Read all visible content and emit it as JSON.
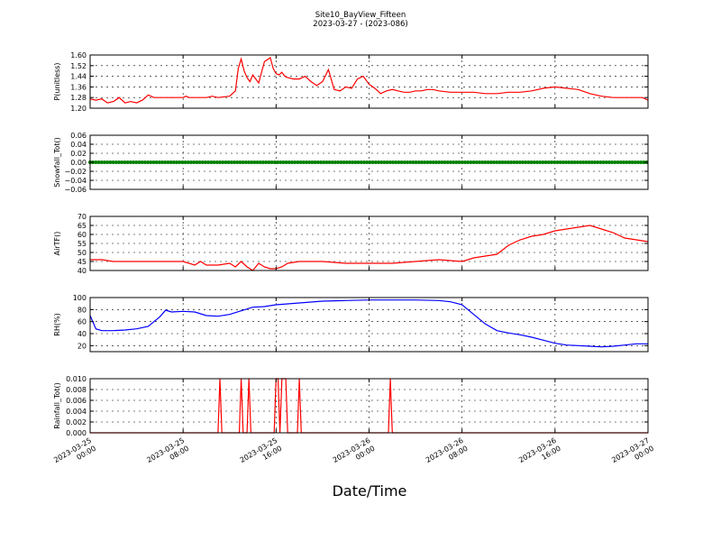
{
  "figure": {
    "title": "Site10_BayView_Fifteen",
    "subtitle": "2023-03-27 - (2023-086)",
    "xlabel": "Date/Time"
  },
  "chart_data": {
    "type": "line",
    "x_axis": {
      "range": [
        "2023-03-25 00:00",
        "2023-03-27 00:00"
      ],
      "tick_labels": [
        [
          "2023-03-25",
          "00:00"
        ],
        [
          "2023-03-25",
          "08:00"
        ],
        [
          "2023-03-25",
          "16:00"
        ],
        [
          "2023-03-26",
          "00:00"
        ],
        [
          "2023-03-26",
          "08:00"
        ],
        [
          "2023-03-26",
          "16:00"
        ],
        [
          "2023-03-27",
          "00:00"
        ]
      ],
      "tick_hours": [
        0,
        8,
        16,
        24,
        32,
        40,
        48
      ]
    },
    "grid": true,
    "panels": [
      {
        "ylabel": "P(unitless)",
        "ylim": [
          1.2,
          1.6
        ],
        "yticks": [
          "1.20",
          "1.28",
          "1.36",
          "1.44",
          "1.52",
          "1.60"
        ],
        "ytick_values": [
          1.2,
          1.28,
          1.36,
          1.44,
          1.52,
          1.6
        ],
        "color": "#ff0000",
        "marker": false,
        "x": [
          "2023-03-25 00:00",
          "2023-03-25 00:30",
          "2023-03-25 01:00",
          "2023-03-25 01:30",
          "2023-03-25 02:00",
          "2023-03-25 02:30",
          "2023-03-25 03:00",
          "2023-03-25 03:30",
          "2023-03-25 04:00",
          "2023-03-25 04:30",
          "2023-03-25 05:00",
          "2023-03-25 05:30",
          "2023-03-25 06:00",
          "2023-03-25 07:00",
          "2023-03-25 08:00",
          "2023-03-25 08:15",
          "2023-03-25 08:30",
          "2023-03-25 09:00",
          "2023-03-25 10:00",
          "2023-03-25 10:30",
          "2023-03-25 11:00",
          "2023-03-25 12:00",
          "2023-03-25 12:30",
          "2023-03-25 12:45",
          "2023-03-25 13:00",
          "2023-03-25 13:15",
          "2023-03-25 13:30",
          "2023-03-25 13:45",
          "2023-03-25 14:00",
          "2023-03-25 14:30",
          "2023-03-25 15:00",
          "2023-03-25 15:30",
          "2023-03-25 15:45",
          "2023-03-25 16:00",
          "2023-03-25 16:15",
          "2023-03-25 16:30",
          "2023-03-25 16:45",
          "2023-03-25 17:00",
          "2023-03-25 17:30",
          "2023-03-25 18:00",
          "2023-03-25 18:30",
          "2023-03-25 19:00",
          "2023-03-25 19:30",
          "2023-03-25 20:00",
          "2023-03-25 20:30",
          "2023-03-25 21:00",
          "2023-03-25 21:30",
          "2023-03-25 22:00",
          "2023-03-25 22:30",
          "2023-03-25 23:00",
          "2023-03-25 23:30",
          "2023-03-26 00:00",
          "2023-03-26 00:30",
          "2023-03-26 01:00",
          "2023-03-26 01:30",
          "2023-03-26 02:00",
          "2023-03-26 02:30",
          "2023-03-26 03:00",
          "2023-03-26 03:30",
          "2023-03-26 04:00",
          "2023-03-26 04:30",
          "2023-03-26 05:00",
          "2023-03-26 05:30",
          "2023-03-26 06:00",
          "2023-03-26 07:00",
          "2023-03-26 08:00",
          "2023-03-26 09:00",
          "2023-03-26 10:00",
          "2023-03-26 11:00",
          "2023-03-26 12:00",
          "2023-03-26 13:00",
          "2023-03-26 14:00",
          "2023-03-26 15:00",
          "2023-03-26 16:00",
          "2023-03-26 17:00",
          "2023-03-26 18:00",
          "2023-03-26 19:00",
          "2023-03-26 20:00",
          "2023-03-26 21:00",
          "2023-03-26 22:00",
          "2023-03-26 23:00",
          "2023-03-26 23:30",
          "2023-03-27 00:00"
        ],
        "values": [
          1.27,
          1.26,
          1.27,
          1.24,
          1.25,
          1.28,
          1.24,
          1.25,
          1.24,
          1.26,
          1.3,
          1.28,
          1.28,
          1.28,
          1.28,
          1.29,
          1.28,
          1.28,
          1.28,
          1.29,
          1.28,
          1.29,
          1.33,
          1.5,
          1.57,
          1.48,
          1.43,
          1.4,
          1.45,
          1.39,
          1.55,
          1.58,
          1.5,
          1.46,
          1.45,
          1.47,
          1.44,
          1.43,
          1.42,
          1.42,
          1.44,
          1.4,
          1.37,
          1.4,
          1.49,
          1.34,
          1.33,
          1.36,
          1.35,
          1.42,
          1.44,
          1.38,
          1.35,
          1.31,
          1.33,
          1.34,
          1.33,
          1.32,
          1.32,
          1.33,
          1.33,
          1.34,
          1.34,
          1.33,
          1.32,
          1.32,
          1.32,
          1.31,
          1.31,
          1.32,
          1.32,
          1.33,
          1.35,
          1.36,
          1.35,
          1.34,
          1.31,
          1.29,
          1.28,
          1.28,
          1.28,
          1.28,
          1.26
        ]
      },
      {
        "ylabel": "Snowfall_Tot()",
        "ylim": [
          -0.06,
          0.06
        ],
        "yticks": [
          "−0.06",
          "−0.04",
          "−0.02",
          "0.00",
          "0.02",
          "0.04",
          "0.06"
        ],
        "ytick_values": [
          -0.06,
          -0.04,
          -0.02,
          0.0,
          0.02,
          0.04,
          0.06
        ],
        "color": "#008000",
        "marker": true,
        "x": [
          "2023-03-25 00:00",
          "2023-03-27 00:00"
        ],
        "values": [
          0.0,
          0.0
        ],
        "note_every_interval": 0.0
      },
      {
        "ylabel": "AirTF()",
        "ylim": [
          40,
          70
        ],
        "yticks": [
          "40",
          "45",
          "50",
          "55",
          "60",
          "65",
          "70"
        ],
        "ytick_values": [
          40,
          45,
          50,
          55,
          60,
          65,
          70
        ],
        "color": "#ff0000",
        "marker": false,
        "x": [
          "2023-03-25 00:00",
          "2023-03-25 01:00",
          "2023-03-25 02:00",
          "2023-03-25 04:00",
          "2023-03-25 06:00",
          "2023-03-25 08:00",
          "2023-03-25 09:00",
          "2023-03-25 09:30",
          "2023-03-25 10:00",
          "2023-03-25 11:00",
          "2023-03-25 12:00",
          "2023-03-25 12:30",
          "2023-03-25 13:00",
          "2023-03-25 13:30",
          "2023-03-25 14:00",
          "2023-03-25 14:30",
          "2023-03-25 15:00",
          "2023-03-25 15:30",
          "2023-03-25 16:00",
          "2023-03-25 16:30",
          "2023-03-25 17:00",
          "2023-03-25 18:00",
          "2023-03-25 20:00",
          "2023-03-25 22:00",
          "2023-03-26 00:00",
          "2023-03-26 02:00",
          "2023-03-26 04:00",
          "2023-03-26 06:00",
          "2023-03-26 08:00",
          "2023-03-26 09:00",
          "2023-03-26 10:00",
          "2023-03-26 11:00",
          "2023-03-26 12:00",
          "2023-03-26 13:00",
          "2023-03-26 14:00",
          "2023-03-26 15:00",
          "2023-03-26 16:00",
          "2023-03-26 17:00",
          "2023-03-26 18:00",
          "2023-03-26 19:00",
          "2023-03-26 20:00",
          "2023-03-26 21:00",
          "2023-03-26 22:00",
          "2023-03-26 23:00",
          "2023-03-27 00:00"
        ],
        "values": [
          46,
          46,
          45,
          45,
          45,
          45,
          43,
          45,
          43,
          43,
          44,
          42,
          45,
          42,
          40,
          44,
          42,
          41,
          41,
          42,
          44,
          45,
          45,
          44,
          44,
          44,
          45,
          46,
          45,
          47,
          48,
          49,
          54,
          57,
          59,
          60,
          62,
          63,
          64,
          65,
          63,
          61,
          58,
          57,
          56
        ]
      },
      {
        "ylabel": "RH(%)",
        "ylim": [
          10,
          100
        ],
        "yticks": [
          "20",
          "40",
          "60",
          "80",
          "100"
        ],
        "ytick_values": [
          20,
          40,
          60,
          80,
          100
        ],
        "color": "#0000ff",
        "marker": false,
        "x": [
          "2023-03-25 00:00",
          "2023-03-25 00:30",
          "2023-03-25 01:00",
          "2023-03-25 02:00",
          "2023-03-25 03:00",
          "2023-03-25 04:00",
          "2023-03-25 05:00",
          "2023-03-25 06:00",
          "2023-03-25 06:30",
          "2023-03-25 07:00",
          "2023-03-25 08:00",
          "2023-03-25 09:00",
          "2023-03-25 10:00",
          "2023-03-25 11:00",
          "2023-03-25 12:00",
          "2023-03-25 13:00",
          "2023-03-25 14:00",
          "2023-03-25 15:00",
          "2023-03-25 16:00",
          "2023-03-25 18:00",
          "2023-03-25 20:00",
          "2023-03-25 22:00",
          "2023-03-26 00:00",
          "2023-03-26 02:00",
          "2023-03-26 04:00",
          "2023-03-26 06:00",
          "2023-03-26 07:00",
          "2023-03-26 08:00",
          "2023-03-26 09:00",
          "2023-03-26 10:00",
          "2023-03-26 11:00",
          "2023-03-26 12:00",
          "2023-03-26 13:00",
          "2023-03-26 14:00",
          "2023-03-26 15:00",
          "2023-03-26 16:00",
          "2023-03-26 17:00",
          "2023-03-26 18:00",
          "2023-03-26 19:00",
          "2023-03-26 20:00",
          "2023-03-26 21:00",
          "2023-03-26 22:00",
          "2023-03-26 23:00",
          "2023-03-27 00:00"
        ],
        "values": [
          70,
          48,
          45,
          45,
          46,
          48,
          52,
          68,
          79,
          76,
          77,
          76,
          70,
          69,
          72,
          78,
          84,
          85,
          88,
          91,
          94,
          95,
          96,
          96,
          96,
          95,
          93,
          88,
          72,
          56,
          45,
          41,
          38,
          34,
          29,
          24,
          21,
          20,
          19,
          18,
          19,
          21,
          23,
          23
        ]
      },
      {
        "ylabel": "Rainfall_Tot()",
        "ylim": [
          0.0,
          0.01
        ],
        "yticks": [
          "0.000",
          "0.002",
          "0.004",
          "0.006",
          "0.008",
          "0.010"
        ],
        "ytick_values": [
          0.0,
          0.002,
          0.004,
          0.006,
          0.008,
          0.01
        ],
        "color": "#ff0000",
        "marker": false,
        "x": [
          "2023-03-25 00:00",
          "2023-03-25 11:00",
          "2023-03-25 11:10",
          "2023-03-25 11:20",
          "2023-03-25 12:50",
          "2023-03-25 13:00",
          "2023-03-25 13:10",
          "2023-03-25 13:30",
          "2023-03-25 13:40",
          "2023-03-25 13:50",
          "2023-03-25 15:50",
          "2023-03-25 16:00",
          "2023-03-25 16:10",
          "2023-03-25 16:20",
          "2023-03-25 16:30",
          "2023-03-25 16:40",
          "2023-03-25 16:50",
          "2023-03-25 17:00",
          "2023-03-25 17:10",
          "2023-03-25 17:50",
          "2023-03-25 18:00",
          "2023-03-25 18:10",
          "2023-03-26 01:40",
          "2023-03-26 01:50",
          "2023-03-26 02:00",
          "2023-03-27 00:00"
        ],
        "values": [
          0,
          0,
          0.01,
          0,
          0,
          0.01,
          0,
          0,
          0.01,
          0,
          0,
          0.01,
          0.01,
          0,
          0.01,
          0.01,
          0.01,
          0,
          0,
          0,
          0.01,
          0,
          0,
          0.01,
          0,
          0
        ]
      }
    ]
  }
}
